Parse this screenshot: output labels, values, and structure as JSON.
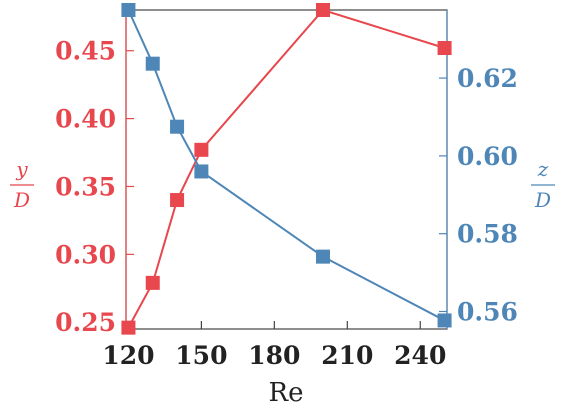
{
  "chart_data": {
    "type": "line",
    "xlabel": "Re",
    "x_ticks": [
      120,
      150,
      180,
      210,
      240
    ],
    "xlim": [
      119,
      251
    ],
    "left_axis": {
      "label_numerator": "y",
      "label_denominator": "D",
      "ylim": [
        0.245,
        0.48
      ],
      "ticks": [
        "0.25",
        "0.30",
        "0.35",
        "0.40",
        "0.45"
      ],
      "color": "#e8474d"
    },
    "right_axis": {
      "label_numerator": "z",
      "label_denominator": "D",
      "ylim": [
        0.5555,
        0.6375
      ],
      "ticks": [
        "0.56",
        "0.58",
        "0.60",
        "0.62"
      ],
      "color": "#4d86b7"
    },
    "series": [
      {
        "axis": "left",
        "color": "#e8474d",
        "x": [
          120,
          130,
          140,
          150,
          200,
          250
        ],
        "y": [
          0.246,
          0.279,
          0.34,
          0.377,
          0.48,
          0.452
        ]
      },
      {
        "axis": "right",
        "color": "#4d86b7",
        "x": [
          120,
          130,
          140,
          150,
          200,
          250
        ],
        "y": [
          0.6375,
          0.6237,
          0.6075,
          0.596,
          0.5741,
          0.5577
        ]
      }
    ],
    "grid": false
  }
}
